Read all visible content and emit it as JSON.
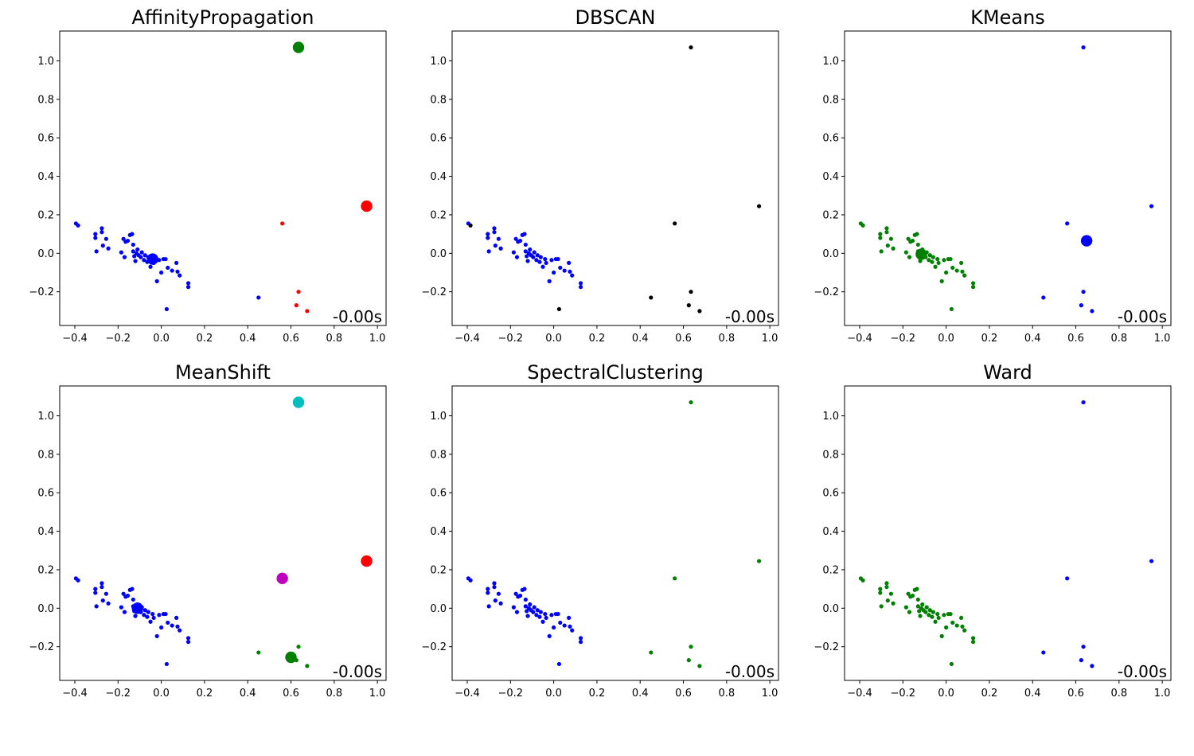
{
  "figure": {
    "background": "#ffffff"
  },
  "chart_data": [
    {
      "type": "scatter",
      "title": "AffinityPropagation",
      "timing": "-0.00s",
      "xlim": [
        -0.47,
        1.04
      ],
      "ylim": [
        -0.375,
        1.155
      ],
      "xticks": [
        -0.4,
        -0.2,
        0.0,
        0.2,
        0.4,
        0.6,
        0.8,
        1.0
      ],
      "xtick_labels": [
        "−0.4",
        "−0.2",
        "0.0",
        "0.2",
        "0.4",
        "0.6",
        "0.8",
        "1.0"
      ],
      "yticks": [
        -0.2,
        0.0,
        0.2,
        0.4,
        0.6,
        0.8,
        1.0
      ],
      "ytick_labels": [
        "−0.2",
        "0.0",
        "0.2",
        "0.4",
        "0.6",
        "0.8",
        "1.0"
      ],
      "grid": false,
      "point_colors": "cluster",
      "cluster_colors": [
        "#0000ff",
        "#008000",
        "#ff0000"
      ],
      "centers": [
        {
          "x": -0.04,
          "y": -0.03,
          "cluster": 0
        },
        {
          "x": 0.635,
          "y": 1.07,
          "cluster": 1
        },
        {
          "x": 0.95,
          "y": 0.245,
          "cluster": 2
        }
      ]
    },
    {
      "type": "scatter",
      "title": "DBSCAN",
      "timing": "-0.00s",
      "xlim": [
        -0.47,
        1.04
      ],
      "ylim": [
        -0.375,
        1.155
      ],
      "xticks": [
        -0.4,
        -0.2,
        0.0,
        0.2,
        0.4,
        0.6,
        0.8,
        1.0
      ],
      "xtick_labels": [
        "−0.4",
        "−0.2",
        "0.0",
        "0.2",
        "0.4",
        "0.6",
        "0.8",
        "1.0"
      ],
      "yticks": [
        -0.2,
        0.0,
        0.2,
        0.4,
        0.6,
        0.8,
        1.0
      ],
      "ytick_labels": [
        "−0.2",
        "0.0",
        "0.2",
        "0.4",
        "0.6",
        "0.8",
        "1.0"
      ],
      "grid": false,
      "point_colors": "per_point",
      "centers": []
    },
    {
      "type": "scatter",
      "title": "KMeans",
      "timing": "-0.00s",
      "xlim": [
        -0.47,
        1.04
      ],
      "ylim": [
        -0.375,
        1.155
      ],
      "xticks": [
        -0.4,
        -0.2,
        0.0,
        0.2,
        0.4,
        0.6,
        0.8,
        1.0
      ],
      "xtick_labels": [
        "−0.4",
        "−0.2",
        "0.0",
        "0.2",
        "0.4",
        "0.6",
        "0.8",
        "1.0"
      ],
      "yticks": [
        -0.2,
        0.0,
        0.2,
        0.4,
        0.6,
        0.8,
        1.0
      ],
      "ytick_labels": [
        "−0.2",
        "0.0",
        "0.2",
        "0.4",
        "0.6",
        "0.8",
        "1.0"
      ],
      "grid": false,
      "point_colors": "per_point",
      "centers": [
        {
          "x": -0.115,
          "y": -0.005,
          "color": "#008000"
        },
        {
          "x": 0.65,
          "y": 0.065,
          "color": "#0000ff"
        }
      ]
    },
    {
      "type": "scatter",
      "title": "MeanShift",
      "timing": "-0.00s",
      "xlim": [
        -0.47,
        1.04
      ],
      "ylim": [
        -0.375,
        1.155
      ],
      "xticks": [
        -0.4,
        -0.2,
        0.0,
        0.2,
        0.4,
        0.6,
        0.8,
        1.0
      ],
      "xtick_labels": [
        "−0.4",
        "−0.2",
        "0.0",
        "0.2",
        "0.4",
        "0.6",
        "0.8",
        "1.0"
      ],
      "yticks": [
        -0.2,
        0.0,
        0.2,
        0.4,
        0.6,
        0.8,
        1.0
      ],
      "ytick_labels": [
        "−0.2",
        "0.0",
        "0.2",
        "0.4",
        "0.6",
        "0.8",
        "1.0"
      ],
      "grid": false,
      "point_colors": "per_point",
      "centers": [
        {
          "x": -0.11,
          "y": 0.0,
          "color": "#0000ff"
        },
        {
          "x": 0.6,
          "y": -0.255,
          "color": "#008000"
        },
        {
          "x": 0.95,
          "y": 0.245,
          "color": "#ff0000"
        },
        {
          "x": 0.635,
          "y": 1.07,
          "color": "#00bfbf"
        },
        {
          "x": 0.56,
          "y": 0.155,
          "color": "#bf00bf"
        }
      ]
    },
    {
      "type": "scatter",
      "title": "SpectralClustering",
      "timing": "-0.00s",
      "xlim": [
        -0.47,
        1.04
      ],
      "ylim": [
        -0.375,
        1.155
      ],
      "xticks": [
        -0.4,
        -0.2,
        0.0,
        0.2,
        0.4,
        0.6,
        0.8,
        1.0
      ],
      "xtick_labels": [
        "−0.4",
        "−0.2",
        "0.0",
        "0.2",
        "0.4",
        "0.6",
        "0.8",
        "1.0"
      ],
      "yticks": [
        -0.2,
        0.0,
        0.2,
        0.4,
        0.6,
        0.8,
        1.0
      ],
      "ytick_labels": [
        "−0.2",
        "0.0",
        "0.2",
        "0.4",
        "0.6",
        "0.8",
        "1.0"
      ],
      "grid": false,
      "point_colors": "per_point",
      "centers": []
    },
    {
      "type": "scatter",
      "title": "Ward",
      "timing": "-0.00s",
      "xlim": [
        -0.47,
        1.04
      ],
      "ylim": [
        -0.375,
        1.155
      ],
      "xticks": [
        -0.4,
        -0.2,
        0.0,
        0.2,
        0.4,
        0.6,
        0.8,
        1.0
      ],
      "xtick_labels": [
        "−0.4",
        "−0.2",
        "0.0",
        "0.2",
        "0.4",
        "0.6",
        "0.8",
        "1.0"
      ],
      "yticks": [
        -0.2,
        0.0,
        0.2,
        0.4,
        0.6,
        0.8,
        1.0
      ],
      "ytick_labels": [
        "−0.2",
        "0.0",
        "0.2",
        "0.4",
        "0.6",
        "0.8",
        "1.0"
      ],
      "grid": false,
      "point_colors": "per_point",
      "centers": []
    }
  ],
  "points": [
    {
      "x": -0.395,
      "y": 0.155,
      "cluster": 0,
      "colors": [
        "#0000ff",
        "#0000ff",
        "#008000",
        "#0000ff",
        "#0000ff",
        "#008000"
      ]
    },
    {
      "x": -0.385,
      "y": 0.145,
      "cluster": 0,
      "colors": [
        "#0000ff",
        "#000000",
        "#008000",
        "#0000ff",
        "#0000ff",
        "#008000"
      ]
    },
    {
      "x": -0.305,
      "y": 0.1,
      "cluster": 0,
      "colors": [
        "#0000ff",
        "#0000ff",
        "#008000",
        "#0000ff",
        "#0000ff",
        "#008000"
      ]
    },
    {
      "x": -0.305,
      "y": 0.08,
      "cluster": 0,
      "colors": [
        "#0000ff",
        "#0000ff",
        "#008000",
        "#0000ff",
        "#0000ff",
        "#008000"
      ]
    },
    {
      "x": -0.3,
      "y": 0.01,
      "cluster": 0,
      "colors": [
        "#0000ff",
        "#0000ff",
        "#008000",
        "#0000ff",
        "#0000ff",
        "#008000"
      ]
    },
    {
      "x": -0.275,
      "y": 0.13,
      "cluster": 0,
      "colors": [
        "#0000ff",
        "#0000ff",
        "#008000",
        "#0000ff",
        "#0000ff",
        "#008000"
      ]
    },
    {
      "x": -0.275,
      "y": 0.11,
      "cluster": 0,
      "colors": [
        "#0000ff",
        "#0000ff",
        "#008000",
        "#0000ff",
        "#0000ff",
        "#008000"
      ]
    },
    {
      "x": -0.27,
      "y": 0.04,
      "cluster": 0,
      "colors": [
        "#0000ff",
        "#0000ff",
        "#008000",
        "#0000ff",
        "#0000ff",
        "#008000"
      ]
    },
    {
      "x": -0.255,
      "y": 0.075,
      "cluster": 0,
      "colors": [
        "#0000ff",
        "#0000ff",
        "#008000",
        "#0000ff",
        "#0000ff",
        "#008000"
      ]
    },
    {
      "x": -0.245,
      "y": 0.025,
      "cluster": 0,
      "colors": [
        "#0000ff",
        "#0000ff",
        "#008000",
        "#0000ff",
        "#0000ff",
        "#008000"
      ]
    },
    {
      "x": -0.185,
      "y": 0.005,
      "cluster": 0,
      "colors": [
        "#0000ff",
        "#0000ff",
        "#008000",
        "#0000ff",
        "#0000ff",
        "#008000"
      ]
    },
    {
      "x": -0.175,
      "y": 0.075,
      "cluster": 0,
      "colors": [
        "#0000ff",
        "#0000ff",
        "#008000",
        "#0000ff",
        "#0000ff",
        "#008000"
      ]
    },
    {
      "x": -0.17,
      "y": -0.02,
      "cluster": 0,
      "colors": [
        "#0000ff",
        "#0000ff",
        "#008000",
        "#0000ff",
        "#0000ff",
        "#008000"
      ]
    },
    {
      "x": -0.165,
      "y": 0.06,
      "cluster": 0,
      "colors": [
        "#0000ff",
        "#0000ff",
        "#008000",
        "#0000ff",
        "#0000ff",
        "#008000"
      ]
    },
    {
      "x": -0.155,
      "y": 0.065,
      "cluster": 0,
      "colors": [
        "#0000ff",
        "#0000ff",
        "#008000",
        "#0000ff",
        "#0000ff",
        "#008000"
      ]
    },
    {
      "x": -0.145,
      "y": 0.095,
      "cluster": 0,
      "colors": [
        "#0000ff",
        "#0000ff",
        "#008000",
        "#0000ff",
        "#0000ff",
        "#008000"
      ]
    },
    {
      "x": -0.135,
      "y": 0.1,
      "cluster": 0,
      "colors": [
        "#0000ff",
        "#0000ff",
        "#008000",
        "#0000ff",
        "#0000ff",
        "#008000"
      ]
    },
    {
      "x": -0.13,
      "y": 0.01,
      "cluster": 0,
      "colors": [
        "#0000ff",
        "#0000ff",
        "#008000",
        "#0000ff",
        "#0000ff",
        "#008000"
      ]
    },
    {
      "x": -0.13,
      "y": 0.045,
      "cluster": 0,
      "colors": [
        "#0000ff",
        "#0000ff",
        "#008000",
        "#0000ff",
        "#0000ff",
        "#008000"
      ]
    },
    {
      "x": -0.125,
      "y": -0.015,
      "cluster": 0,
      "colors": [
        "#0000ff",
        "#0000ff",
        "#008000",
        "#0000ff",
        "#0000ff",
        "#008000"
      ]
    },
    {
      "x": -0.12,
      "y": -0.04,
      "cluster": 0,
      "colors": [
        "#0000ff",
        "#0000ff",
        "#008000",
        "#0000ff",
        "#0000ff",
        "#008000"
      ]
    },
    {
      "x": -0.115,
      "y": 0.0,
      "cluster": 0,
      "colors": [
        "#0000ff",
        "#0000ff",
        "#008000",
        "#0000ff",
        "#0000ff",
        "#008000"
      ]
    },
    {
      "x": -0.11,
      "y": 0.02,
      "cluster": 0,
      "colors": [
        "#0000ff",
        "#0000ff",
        "#008000",
        "#0000ff",
        "#0000ff",
        "#008000"
      ]
    },
    {
      "x": -0.105,
      "y": -0.01,
      "cluster": 0,
      "colors": [
        "#0000ff",
        "#0000ff",
        "#008000",
        "#0000ff",
        "#0000ff",
        "#008000"
      ]
    },
    {
      "x": -0.095,
      "y": -0.02,
      "cluster": 0,
      "colors": [
        "#0000ff",
        "#0000ff",
        "#008000",
        "#0000ff",
        "#0000ff",
        "#008000"
      ]
    },
    {
      "x": -0.09,
      "y": 0.005,
      "cluster": 0,
      "colors": [
        "#0000ff",
        "#0000ff",
        "#008000",
        "#0000ff",
        "#0000ff",
        "#008000"
      ]
    },
    {
      "x": -0.08,
      "y": -0.035,
      "cluster": 0,
      "colors": [
        "#0000ff",
        "#0000ff",
        "#008000",
        "#0000ff",
        "#0000ff",
        "#008000"
      ]
    },
    {
      "x": -0.075,
      "y": -0.01,
      "cluster": 0,
      "colors": [
        "#0000ff",
        "#0000ff",
        "#008000",
        "#0000ff",
        "#0000ff",
        "#008000"
      ]
    },
    {
      "x": -0.065,
      "y": -0.045,
      "cluster": 0,
      "colors": [
        "#0000ff",
        "#0000ff",
        "#008000",
        "#0000ff",
        "#0000ff",
        "#008000"
      ]
    },
    {
      "x": -0.06,
      "y": -0.02,
      "cluster": 0,
      "colors": [
        "#0000ff",
        "#0000ff",
        "#008000",
        "#0000ff",
        "#0000ff",
        "#008000"
      ]
    },
    {
      "x": -0.05,
      "y": -0.07,
      "cluster": 0,
      "colors": [
        "#0000ff",
        "#0000ff",
        "#008000",
        "#0000ff",
        "#0000ff",
        "#008000"
      ]
    },
    {
      "x": -0.04,
      "y": -0.03,
      "cluster": 0,
      "colors": [
        "#0000ff",
        "#0000ff",
        "#008000",
        "#0000ff",
        "#0000ff",
        "#008000"
      ]
    },
    {
      "x": -0.035,
      "y": -0.05,
      "cluster": 0,
      "colors": [
        "#0000ff",
        "#0000ff",
        "#008000",
        "#0000ff",
        "#0000ff",
        "#008000"
      ]
    },
    {
      "x": -0.02,
      "y": -0.145,
      "cluster": 0,
      "colors": [
        "#0000ff",
        "#0000ff",
        "#008000",
        "#0000ff",
        "#0000ff",
        "#008000"
      ]
    },
    {
      "x": -0.01,
      "y": -0.035,
      "cluster": 0,
      "colors": [
        "#0000ff",
        "#0000ff",
        "#008000",
        "#0000ff",
        "#0000ff",
        "#008000"
      ]
    },
    {
      "x": 0.0,
      "y": -0.1,
      "cluster": 0,
      "colors": [
        "#0000ff",
        "#0000ff",
        "#008000",
        "#0000ff",
        "#0000ff",
        "#008000"
      ]
    },
    {
      "x": 0.01,
      "y": -0.03,
      "cluster": 0,
      "colors": [
        "#0000ff",
        "#0000ff",
        "#008000",
        "#0000ff",
        "#0000ff",
        "#008000"
      ]
    },
    {
      "x": 0.02,
      "y": -0.03,
      "cluster": 0,
      "colors": [
        "#0000ff",
        "#0000ff",
        "#008000",
        "#0000ff",
        "#0000ff",
        "#008000"
      ]
    },
    {
      "x": 0.025,
      "y": -0.29,
      "cluster": 0,
      "colors": [
        "#0000ff",
        "#000000",
        "#008000",
        "#0000ff",
        "#0000ff",
        "#008000"
      ]
    },
    {
      "x": 0.03,
      "y": -0.075,
      "cluster": 0,
      "colors": [
        "#0000ff",
        "#0000ff",
        "#008000",
        "#0000ff",
        "#0000ff",
        "#008000"
      ]
    },
    {
      "x": 0.05,
      "y": -0.09,
      "cluster": 0,
      "colors": [
        "#0000ff",
        "#0000ff",
        "#008000",
        "#0000ff",
        "#0000ff",
        "#008000"
      ]
    },
    {
      "x": 0.07,
      "y": -0.05,
      "cluster": 0,
      "colors": [
        "#0000ff",
        "#0000ff",
        "#008000",
        "#0000ff",
        "#0000ff",
        "#008000"
      ]
    },
    {
      "x": 0.075,
      "y": -0.095,
      "cluster": 0,
      "colors": [
        "#0000ff",
        "#0000ff",
        "#008000",
        "#0000ff",
        "#0000ff",
        "#008000"
      ]
    },
    {
      "x": 0.085,
      "y": -0.115,
      "cluster": 0,
      "colors": [
        "#0000ff",
        "#0000ff",
        "#008000",
        "#0000ff",
        "#0000ff",
        "#008000"
      ]
    },
    {
      "x": 0.125,
      "y": -0.155,
      "cluster": 0,
      "colors": [
        "#0000ff",
        "#0000ff",
        "#008000",
        "#0000ff",
        "#0000ff",
        "#008000"
      ]
    },
    {
      "x": 0.125,
      "y": -0.175,
      "cluster": 0,
      "colors": [
        "#0000ff",
        "#0000ff",
        "#008000",
        "#0000ff",
        "#0000ff",
        "#008000"
      ]
    },
    {
      "x": 0.45,
      "y": -0.23,
      "cluster": 0,
      "colors": [
        "#0000ff",
        "#000000",
        "#0000ff",
        "#008000",
        "#008000",
        "#0000ff"
      ]
    },
    {
      "x": 0.56,
      "y": 0.155,
      "cluster": 2,
      "colors": [
        "#ff0000",
        "#000000",
        "#0000ff",
        "#bf00bf",
        "#008000",
        "#0000ff"
      ]
    },
    {
      "x": 0.635,
      "y": -0.2,
      "cluster": 2,
      "colors": [
        "#ff0000",
        "#000000",
        "#0000ff",
        "#008000",
        "#008000",
        "#0000ff"
      ]
    },
    {
      "x": 0.625,
      "y": -0.27,
      "cluster": 2,
      "colors": [
        "#ff0000",
        "#000000",
        "#0000ff",
        "#008000",
        "#008000",
        "#0000ff"
      ]
    },
    {
      "x": 0.675,
      "y": -0.3,
      "cluster": 2,
      "colors": [
        "#ff0000",
        "#000000",
        "#0000ff",
        "#008000",
        "#008000",
        "#0000ff"
      ]
    },
    {
      "x": 0.635,
      "y": 1.07,
      "cluster": 1,
      "colors": [
        "#008000",
        "#000000",
        "#0000ff",
        "#00bfbf",
        "#008000",
        "#0000ff"
      ]
    },
    {
      "x": 0.95,
      "y": 0.245,
      "cluster": 2,
      "colors": [
        "#ff0000",
        "#000000",
        "#0000ff",
        "#ff0000",
        "#008000",
        "#0000ff"
      ]
    }
  ]
}
